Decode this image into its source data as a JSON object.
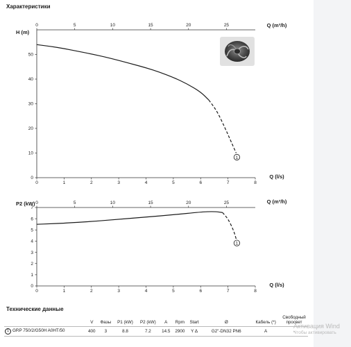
{
  "page": {
    "section_title": "Характеристики",
    "table_title": "Технические данные",
    "watermark_main": "Активация Wind",
    "watermark_sub": "Чтобы активировать"
  },
  "chart_data": [
    {
      "type": "line",
      "title": "",
      "ylabel": "H (m)",
      "xlabel": "Q (l/s)",
      "x2label": "Q (m³/h)",
      "xlim": [
        0,
        8
      ],
      "ylim": [
        0,
        60
      ],
      "x2lim": [
        0,
        28.8
      ],
      "xticks": [
        0,
        1,
        2,
        3,
        4,
        5,
        6,
        7,
        8
      ],
      "yticks": [
        0,
        10,
        20,
        30,
        40,
        50
      ],
      "x2ticks": [
        0,
        5,
        10,
        15,
        20,
        25
      ],
      "grid": false,
      "series": [
        {
          "name": "1",
          "color": "#1a1a1a",
          "x": [
            0,
            0.5,
            1,
            1.5,
            2,
            2.5,
            3,
            3.5,
            4,
            4.5,
            5,
            5.5,
            6,
            6.3,
            6.6,
            6.9,
            7.1,
            7.3
          ],
          "y": [
            54,
            53.3,
            52.4,
            51.3,
            50.2,
            49,
            47.6,
            46.1,
            44.6,
            42.8,
            40.7,
            38.1,
            34.8,
            31.5,
            27,
            20,
            15,
            10
          ],
          "dashed_from_x": 6.5
        }
      ]
    },
    {
      "type": "line",
      "title": "",
      "ylabel": "P2 (kW)",
      "xlabel": "Q (l/s)",
      "x2label": "Q (m³/h)",
      "xlim": [
        0,
        8
      ],
      "ylim": [
        0,
        7
      ],
      "x2lim": [
        0,
        28.8
      ],
      "xticks": [
        0,
        1,
        2,
        3,
        4,
        5,
        6,
        7,
        8
      ],
      "yticks": [
        0,
        1,
        2,
        3,
        4,
        5,
        6,
        7
      ],
      "x2ticks": [
        0,
        5,
        10,
        15,
        20,
        25
      ],
      "grid": false,
      "series": [
        {
          "name": "1",
          "color": "#1a1a1a",
          "x": [
            0,
            0.5,
            1,
            2,
            3,
            4,
            5,
            6,
            6.5,
            6.8,
            7.0,
            7.2,
            7.3
          ],
          "y": [
            5.5,
            5.55,
            5.6,
            5.75,
            5.95,
            6.15,
            6.35,
            6.6,
            6.65,
            6.55,
            6.0,
            5.0,
            4.2
          ],
          "dashed_from_x": 6.9
        }
      ]
    }
  ],
  "table": {
    "headers": [
      "",
      "V",
      "Фазы",
      "P1 (kW)",
      "P2 (kW)",
      "A",
      "Rpm",
      "Start",
      "Ø",
      "Кабель (*)",
      "Свободный просвет"
    ],
    "row": {
      "num": "1",
      "model": "GRP 750/2/G50H A0HT/50",
      "cells": [
        "400",
        "3",
        "8.8",
        "7.2",
        "14.5",
        "2900",
        "Y Δ",
        "G2\"-DN32 PN6",
        "A",
        "-"
      ]
    }
  },
  "icons": {
    "pump": "impeller-image"
  }
}
